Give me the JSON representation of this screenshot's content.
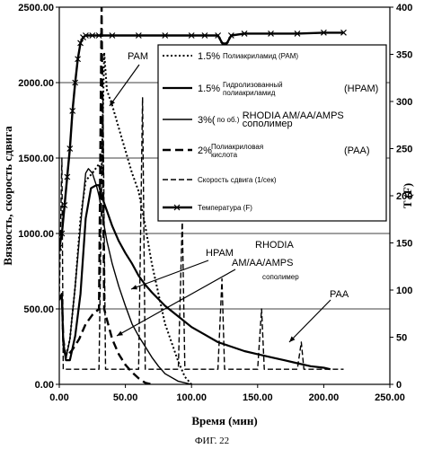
{
  "figure_caption": "ФИГ. 22",
  "chart_data": {
    "type": "line",
    "xlabel": "Время (мин)",
    "ylabel": "Вязкость, скорость сдвига",
    "y2label": "T (F)",
    "xlim": [
      0,
      250
    ],
    "ylim": [
      0,
      2500
    ],
    "y2lim": [
      0,
      400
    ],
    "x_ticks": [
      "0.00",
      "50.00",
      "100.00",
      "150.00",
      "200.00",
      "250.00"
    ],
    "y_ticks": [
      "0.00",
      "500.00",
      "1000.00",
      "1500.00",
      "2000.00",
      "2500.00"
    ],
    "y2_ticks": [
      "0",
      "50",
      "100",
      "150",
      "200",
      "250",
      "300",
      "350",
      "400"
    ],
    "grid": "horizontal",
    "legend_position": "top-right",
    "legend": [
      {
        "prefix": "1.5%",
        "lines": [
          "Полиакриламид (PAM)"
        ],
        "suffix": ""
      },
      {
        "prefix": "1.5%",
        "lines": [
          "Гидролизованный",
          "полиакриламид"
        ],
        "suffix": "(HPAM)"
      },
      {
        "prefix": "3%(",
        "mid": "по об.)",
        "lines": [
          "RHODIA AM/AA/AMPS",
          "сополимер"
        ],
        "suffix": ""
      },
      {
        "prefix": "2%",
        "lines": [
          "Полиакриловая",
          "кислота"
        ],
        "suffix": "(PAA)"
      },
      {
        "prefix": "",
        "lines": [
          "Скорость сдвига (1/сек)"
        ],
        "suffix": ""
      },
      {
        "prefix": "",
        "lines": [
          "Температура (F)"
        ],
        "suffix": ""
      }
    ],
    "annotations": {
      "pam": "PAM",
      "hpam": "HPAM",
      "rhodia_1": "RHODIA",
      "rhodia_2": "AM/AA/AMPS",
      "rhodia_3": "сополимер",
      "paa": "PAA"
    },
    "series": [
      {
        "name": "1.5% Полиакриламид (PAM)",
        "style": "dotted",
        "axis": "left",
        "x": [
          0,
          2,
          3,
          5,
          8,
          12,
          16,
          20,
          25,
          30,
          32,
          34,
          36,
          40,
          45,
          50,
          55,
          60,
          65,
          70,
          80,
          90,
          95,
          100
        ],
        "y": [
          560,
          600,
          250,
          180,
          300,
          650,
          1100,
          1350,
          1400,
          1460,
          1400,
          2200,
          1950,
          1850,
          1700,
          1550,
          1400,
          1280,
          1050,
          800,
          400,
          150,
          50,
          0
        ]
      },
      {
        "name": "1.5% Гидролизованный полиакриламид (HPAM)",
        "style": "solid-thick",
        "axis": "left",
        "x": [
          0,
          2,
          3,
          5,
          8,
          12,
          16,
          20,
          24,
          28,
          30,
          32,
          34,
          36,
          40,
          45,
          50,
          55,
          60,
          65,
          70,
          80,
          90,
          100,
          110,
          120,
          130,
          140,
          150,
          160,
          170,
          180,
          190,
          200,
          205
        ],
        "y": [
          560,
          590,
          280,
          160,
          160,
          320,
          600,
          1100,
          1300,
          1320,
          1320,
          1250,
          1200,
          1150,
          1050,
          950,
          870,
          800,
          720,
          660,
          610,
          520,
          450,
          380,
          330,
          280,
          250,
          220,
          200,
          180,
          160,
          140,
          120,
          110,
          100
        ]
      },
      {
        "name": "3% (по об.) RHODIA AM/AA/AMPS сополимер",
        "style": "solid",
        "axis": "left",
        "x": [
          0,
          2,
          3,
          5,
          8,
          12,
          16,
          20,
          22,
          25,
          28,
          30,
          32,
          34,
          36,
          40,
          45,
          50,
          55,
          60,
          65,
          70,
          75,
          80,
          90,
          100
        ],
        "y": [
          560,
          590,
          250,
          170,
          300,
          650,
          1050,
          1400,
          1430,
          1400,
          1320,
          1250,
          1150,
          1050,
          950,
          800,
          650,
          520,
          400,
          320,
          250,
          180,
          120,
          70,
          20,
          0
        ]
      },
      {
        "name": "2% Полиакриловая кислота (PAA)",
        "style": "dashed",
        "axis": "left",
        "x": [
          0,
          2,
          3,
          5,
          10,
          15,
          20,
          25,
          30,
          32,
          34,
          36,
          40,
          45,
          50,
          55,
          60,
          65,
          70
        ],
        "y": [
          560,
          600,
          300,
          180,
          230,
          300,
          400,
          460,
          500,
          2500,
          500,
          430,
          300,
          200,
          130,
          80,
          40,
          10,
          0
        ]
      },
      {
        "name": "Скорость сдвига (1/сек)",
        "style": "dashed-fine",
        "axis": "left",
        "x": [
          0,
          2,
          3,
          5,
          10,
          15,
          20,
          25,
          30,
          33,
          35,
          60,
          63,
          65,
          90,
          93,
          95,
          120,
          123,
          125,
          150,
          153,
          155,
          180,
          183,
          185,
          210,
          215
        ],
        "y": [
          560,
          1500,
          100,
          100,
          100,
          100,
          100,
          100,
          100,
          1900,
          100,
          100,
          1900,
          100,
          100,
          1100,
          100,
          100,
          700,
          100,
          100,
          500,
          100,
          100,
          280,
          100,
          100,
          100
        ]
      },
      {
        "name": "Температура (F)",
        "style": "marker-x",
        "axis": "right",
        "x": [
          0,
          2,
          4,
          6,
          8,
          10,
          12,
          14,
          16,
          18,
          20,
          25,
          30,
          40,
          60,
          80,
          100,
          110,
          120,
          124,
          126,
          130,
          140,
          160,
          180,
          200,
          215
        ],
        "y": [
          145,
          160,
          190,
          220,
          250,
          290,
          320,
          345,
          362,
          368,
          370,
          370,
          370,
          370,
          370,
          370,
          370,
          370,
          370,
          360,
          360,
          370,
          372,
          372,
          372,
          373,
          373
        ]
      }
    ]
  }
}
